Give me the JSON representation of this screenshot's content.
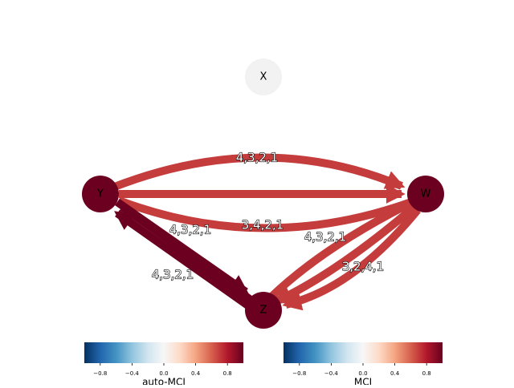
{
  "nodes": [
    {
      "label": "X"
    },
    {
      "label": "Y"
    },
    {
      "label": "W"
    },
    {
      "label": "Z"
    }
  ],
  "edges": [
    {
      "label": "4,3,2,1"
    },
    {
      "label": "3,4,2,1"
    },
    {
      "label": "4,3,2,1"
    },
    {
      "label": "4,3,2,1"
    },
    {
      "label": "4,3,2,1"
    },
    {
      "label": "3,2,4,1"
    }
  ],
  "colorbars": [
    {
      "label": "auto-MCI",
      "range": [
        -1,
        1
      ],
      "ticks": [
        {
          "value": -0.8,
          "label": "−0.8"
        },
        {
          "value": -0.4,
          "label": "−0.4"
        },
        {
          "value": 0,
          "label": "0.0"
        },
        0.4,
        0.8
      ]
    },
    {
      "label": "MCI",
      "range": [
        -1,
        1
      ],
      "ticks": [
        {
          "value": -0.8,
          "label": "−0.8"
        },
        {
          "value": -0.4,
          "label": "−0.4"
        },
        {
          "value": 0,
          "label": "0.0"
        },
        0.4,
        0.8
      ]
    }
  ]
}
